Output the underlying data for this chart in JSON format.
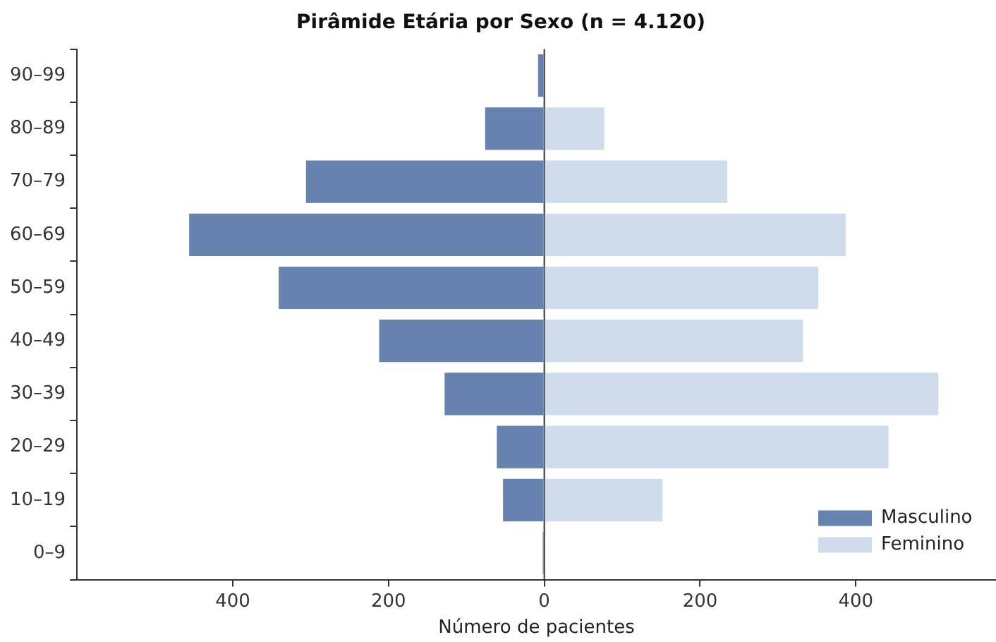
{
  "chart_data": {
    "type": "bar",
    "orientation": "horizontal",
    "stacked": true,
    "title": "Pirâmide Etária por Sexo (n = 4.120)",
    "xlabel": "Número de pacientes",
    "categories": [
      "90–99",
      "80–89",
      "70–79",
      "60–69",
      "50–59",
      "40–49",
      "30–39",
      "20–29",
      "10–19",
      "0–9"
    ],
    "series": [
      {
        "name": "Masculino",
        "color": "#6683b0",
        "values": [
          -8,
          -76,
          -306,
          -456,
          -341,
          -212,
          -128,
          -61,
          -53,
          -2
        ]
      },
      {
        "name": "Feminino",
        "color": "#cfdceb",
        "values": [
          0,
          77,
          235,
          387,
          352,
          332,
          506,
          442,
          152,
          null
        ]
      }
    ],
    "xlim": [
      -600,
      580
    ],
    "xticks": [
      {
        "value": -400,
        "label": "400"
      },
      {
        "value": -200,
        "label": "200"
      },
      0,
      200,
      400
    ],
    "ref_lines": [
      {
        "axis": "x",
        "value": 0,
        "color": "#333333"
      }
    ],
    "grid": false,
    "legend": "bottom right"
  }
}
